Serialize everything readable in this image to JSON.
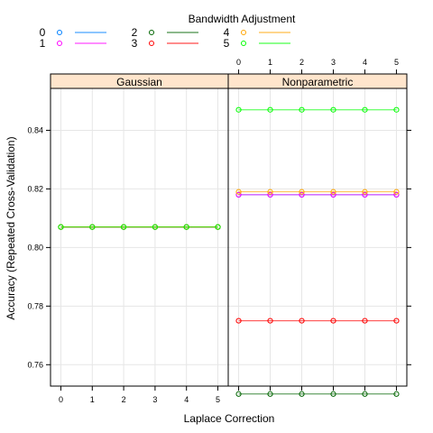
{
  "chart_data": {
    "type": "line",
    "xlabel": "Laplace Correction",
    "ylabel": "Accuracy (Repeated Cross-Validation)",
    "legend_title": "Bandwidth Adjustment",
    "legend_placement": "top",
    "x": [
      0,
      1,
      2,
      3,
      4,
      5
    ],
    "x_ticks": [
      "0",
      "1",
      "2",
      "3",
      "4",
      "5"
    ],
    "y_ticks": [
      "0.76",
      "0.78",
      "0.80",
      "0.82",
      "0.84"
    ],
    "ylim": [
      0.7527,
      0.8543
    ],
    "grid": true,
    "legend": [
      {
        "label": "0",
        "color": "#0080FF"
      },
      {
        "label": "1",
        "color": "#FF00FF"
      },
      {
        "label": "2",
        "color": "#006400"
      },
      {
        "label": "3",
        "color": "#FF0000"
      },
      {
        "label": "4",
        "color": "#FFA500"
      },
      {
        "label": "5",
        "color": "#00FF00"
      }
    ],
    "panels": [
      {
        "name": "Gaussian",
        "series": [
          {
            "name": "0",
            "color": "#0080FF",
            "values": [
              0.807,
              0.807,
              0.807,
              0.807,
              0.807,
              0.807
            ]
          },
          {
            "name": "1",
            "color": "#FF00FF",
            "values": [
              0.807,
              0.807,
              0.807,
              0.807,
              0.807,
              0.807
            ]
          },
          {
            "name": "2",
            "color": "#006400",
            "values": [
              0.807,
              0.807,
              0.807,
              0.807,
              0.807,
              0.807
            ]
          },
          {
            "name": "3",
            "color": "#FF0000",
            "values": [
              0.807,
              0.807,
              0.807,
              0.807,
              0.807,
              0.807
            ]
          },
          {
            "name": "4",
            "color": "#FFA500",
            "values": [
              0.807,
              0.807,
              0.807,
              0.807,
              0.807,
              0.807
            ]
          },
          {
            "name": "5",
            "color": "#00FF00",
            "values": [
              0.807,
              0.807,
              0.807,
              0.807,
              0.807,
              0.807
            ]
          }
        ]
      },
      {
        "name": "Nonparametric",
        "series": [
          {
            "name": "0",
            "color": "#0080FF",
            "values": [
              0.818,
              0.818,
              0.818,
              0.818,
              0.818,
              0.818
            ]
          },
          {
            "name": "1",
            "color": "#FF00FF",
            "values": [
              0.818,
              0.818,
              0.818,
              0.818,
              0.818,
              0.818
            ]
          },
          {
            "name": "2",
            "color": "#006400",
            "values": [
              0.75,
              0.75,
              0.75,
              0.75,
              0.75,
              0.75
            ]
          },
          {
            "name": "3",
            "color": "#FF0000",
            "values": [
              0.775,
              0.775,
              0.775,
              0.775,
              0.775,
              0.775
            ]
          },
          {
            "name": "4",
            "color": "#FFA500",
            "values": [
              0.819,
              0.819,
              0.819,
              0.819,
              0.819,
              0.819
            ]
          },
          {
            "name": "5",
            "color": "#00FF00",
            "values": [
              0.847,
              0.847,
              0.847,
              0.847,
              0.847,
              0.847
            ]
          }
        ]
      }
    ]
  }
}
